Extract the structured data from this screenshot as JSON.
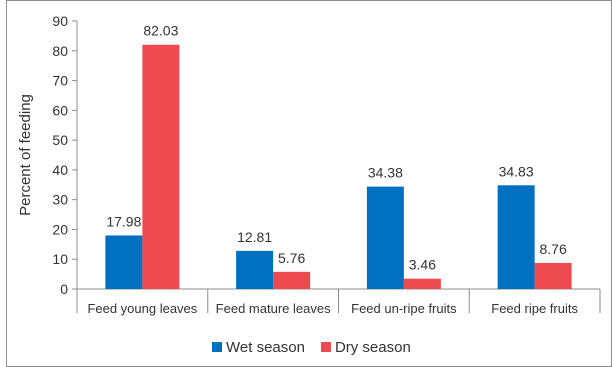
{
  "chart_data": {
    "type": "bar",
    "categories": [
      "Feed young leaves",
      "Feed mature leaves",
      "Feed un-ripe fruits",
      "Feed ripe fruits"
    ],
    "series": [
      {
        "name": "Wet season",
        "values": [
          17.98,
          12.81,
          34.38,
          34.83
        ],
        "color": "#0070C0"
      },
      {
        "name": "Dry season",
        "values": [
          82.03,
          5.76,
          3.46,
          8.76
        ],
        "color": "#EE4B50"
      }
    ],
    "data_labels": [
      [
        "17.98",
        "12.81",
        "34.38",
        "34.83"
      ],
      [
        "82.03",
        "5.76",
        "3.46",
        "8.76"
      ]
    ],
    "ylabel": "Percent of feeding",
    "ylim": [
      0,
      90
    ],
    "yticks": [
      "0",
      "10",
      "20",
      "30",
      "40",
      "50",
      "60",
      "70",
      "80",
      "90"
    ],
    "legend_position": "bottom",
    "grid": false
  }
}
